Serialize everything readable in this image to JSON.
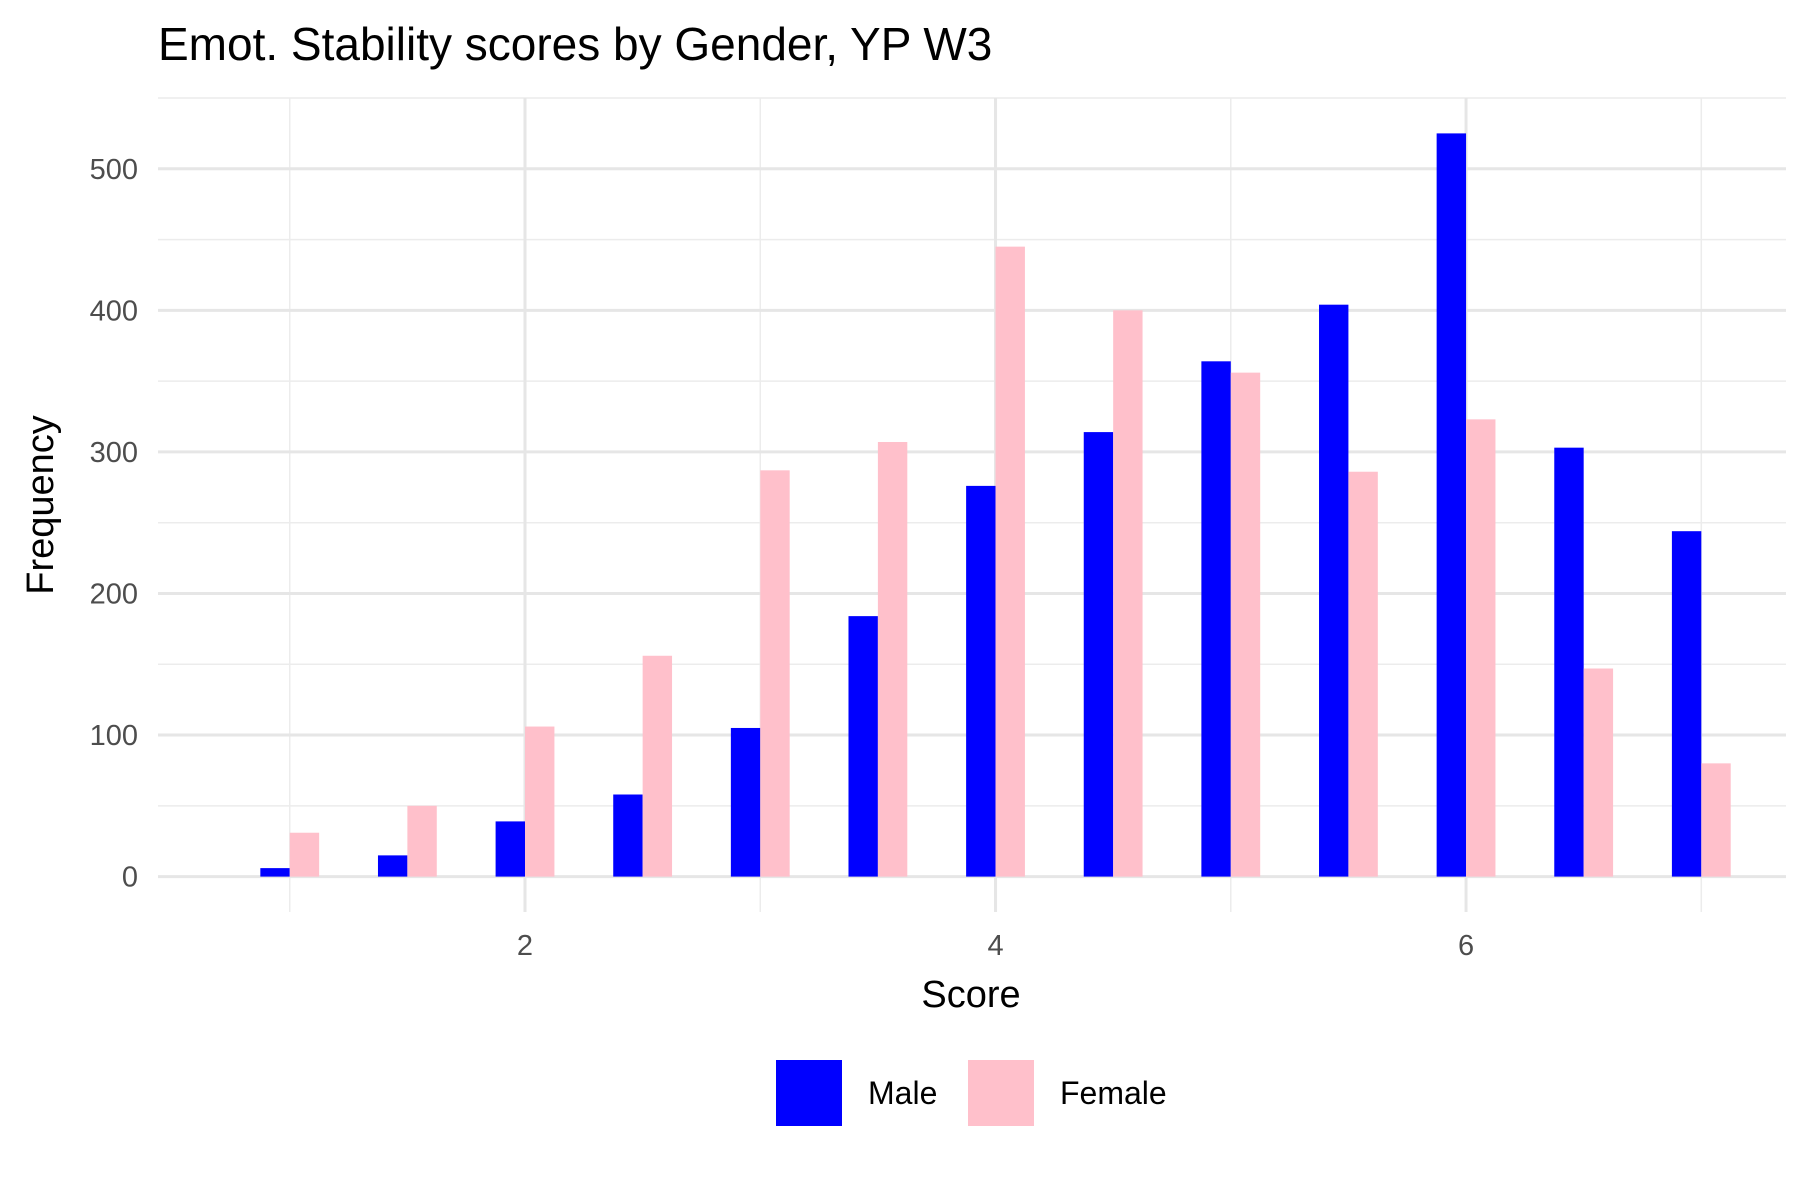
{
  "chart_data": {
    "type": "bar",
    "title": "Emot. Stability scores by Gender, YP W3",
    "xlabel": "Score",
    "ylabel": "Frequency",
    "x": [
      1,
      1.5,
      2,
      2.5,
      3,
      3.5,
      4,
      4.5,
      5,
      5.5,
      6,
      6.5,
      7
    ],
    "series": [
      {
        "name": "Male",
        "color": "#0000ff",
        "values": [
          6,
          15,
          39,
          58,
          105,
          184,
          276,
          314,
          364,
          404,
          525,
          303,
          244
        ]
      },
      {
        "name": "Female",
        "color": "#ffc0cb",
        "values": [
          31,
          50,
          106,
          156,
          287,
          307,
          445,
          400,
          356,
          286,
          323,
          147,
          80
        ]
      }
    ],
    "xlim": [
      0.44,
      7.36
    ],
    "ylim": [
      -25,
      550
    ],
    "xticks": [
      2,
      4,
      6
    ],
    "xtick_labels": [
      "2",
      "4",
      "6"
    ],
    "yticks": [
      0,
      100,
      200,
      300,
      400,
      500
    ],
    "ytick_labels": [
      "0",
      "100",
      "200",
      "300",
      "400",
      "500"
    ],
    "grid": true,
    "legend_position": "bottom"
  }
}
